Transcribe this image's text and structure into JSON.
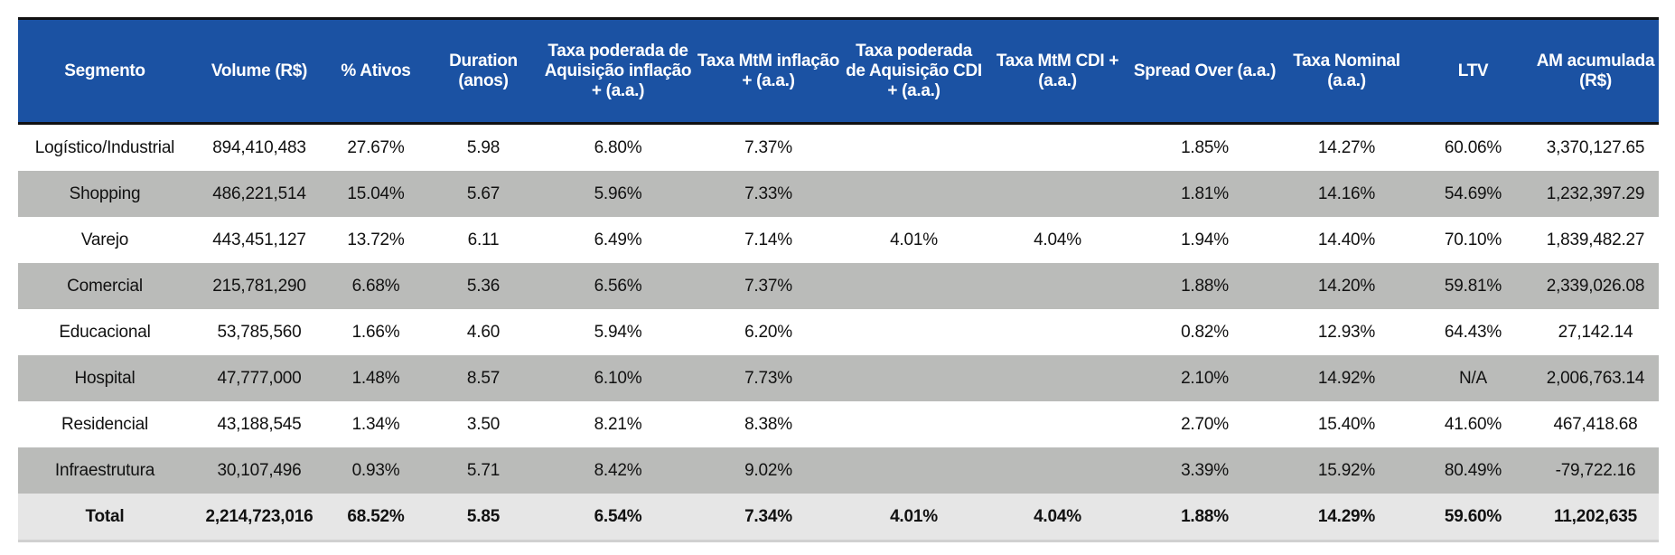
{
  "colors": {
    "header": "#1B52A3",
    "alt_row": "#BABBB9",
    "total_row": "#E6E6E6"
  },
  "columns": [
    "Segmento",
    "Volume (R$)",
    "% Ativos",
    "Duration (anos)",
    "Taxa poderada de Aquisição inflação + (a.a.)",
    "Taxa MtM inflação + (a.a.)",
    "Taxa poderada de Aquisição CDI + (a.a.)",
    "Taxa MtM CDI + (a.a.)",
    "Spread Over (a.a.)",
    "Taxa Nominal (a.a.)",
    "LTV",
    "AM acumulada (R$)"
  ],
  "rows": [
    [
      "Logístico/Industrial",
      "894,410,483",
      "27.67%",
      "5.98",
      "6.80%",
      "7.37%",
      "",
      "",
      "1.85%",
      "14.27%",
      "60.06%",
      "3,370,127.65"
    ],
    [
      "Shopping",
      "486,221,514",
      "15.04%",
      "5.67",
      "5.96%",
      "7.33%",
      "",
      "",
      "1.81%",
      "14.16%",
      "54.69%",
      "1,232,397.29"
    ],
    [
      "Varejo",
      "443,451,127",
      "13.72%",
      "6.11",
      "6.49%",
      "7.14%",
      "4.01%",
      "4.04%",
      "1.94%",
      "14.40%",
      "70.10%",
      "1,839,482.27"
    ],
    [
      "Comercial",
      "215,781,290",
      "6.68%",
      "5.36",
      "6.56%",
      "7.37%",
      "",
      "",
      "1.88%",
      "14.20%",
      "59.81%",
      "2,339,026.08"
    ],
    [
      "Educacional",
      "53,785,560",
      "1.66%",
      "4.60",
      "5.94%",
      "6.20%",
      "",
      "",
      "0.82%",
      "12.93%",
      "64.43%",
      "27,142.14"
    ],
    [
      "Hospital",
      "47,777,000",
      "1.48%",
      "8.57",
      "6.10%",
      "7.73%",
      "",
      "",
      "2.10%",
      "14.92%",
      "N/A",
      "2,006,763.14"
    ],
    [
      "Residencial",
      "43,188,545",
      "1.34%",
      "3.50",
      "8.21%",
      "8.38%",
      "",
      "",
      "2.70%",
      "15.40%",
      "41.60%",
      "467,418.68"
    ],
    [
      "Infraestrutura",
      "30,107,496",
      "0.93%",
      "5.71",
      "8.42%",
      "9.02%",
      "",
      "",
      "3.39%",
      "15.92%",
      "80.49%",
      "-79,722.16"
    ]
  ],
  "total": [
    "Total",
    "2,214,723,016",
    "68.52%",
    "5.85",
    "6.54%",
    "7.34%",
    "4.01%",
    "4.04%",
    "1.88%",
    "14.29%",
    "59.60%",
    "11,202,635"
  ]
}
